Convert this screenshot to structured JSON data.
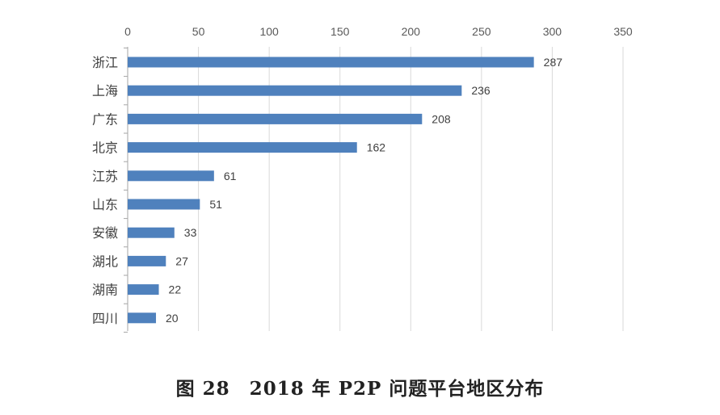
{
  "caption": "图 28　2018 年 P2P 问题平台地区分布",
  "colors": {
    "bar": "#4f81bd",
    "grid": "#d9d9d9",
    "axis": "#a6a6a6"
  },
  "chart_data": {
    "type": "bar",
    "orientation": "horizontal",
    "title": "",
    "xlabel": "",
    "ylabel": "",
    "xlim": [
      0,
      350
    ],
    "xticks": [
      0,
      50,
      100,
      150,
      200,
      250,
      300,
      350
    ],
    "x_axis_position": "top",
    "grid": true,
    "categories": [
      "浙江",
      "上海",
      "广东",
      "北京",
      "江苏",
      "山东",
      "安徽",
      "湖北",
      "湖南",
      "四川"
    ],
    "values": [
      287,
      236,
      208,
      162,
      61,
      51,
      33,
      27,
      22,
      20
    ]
  }
}
